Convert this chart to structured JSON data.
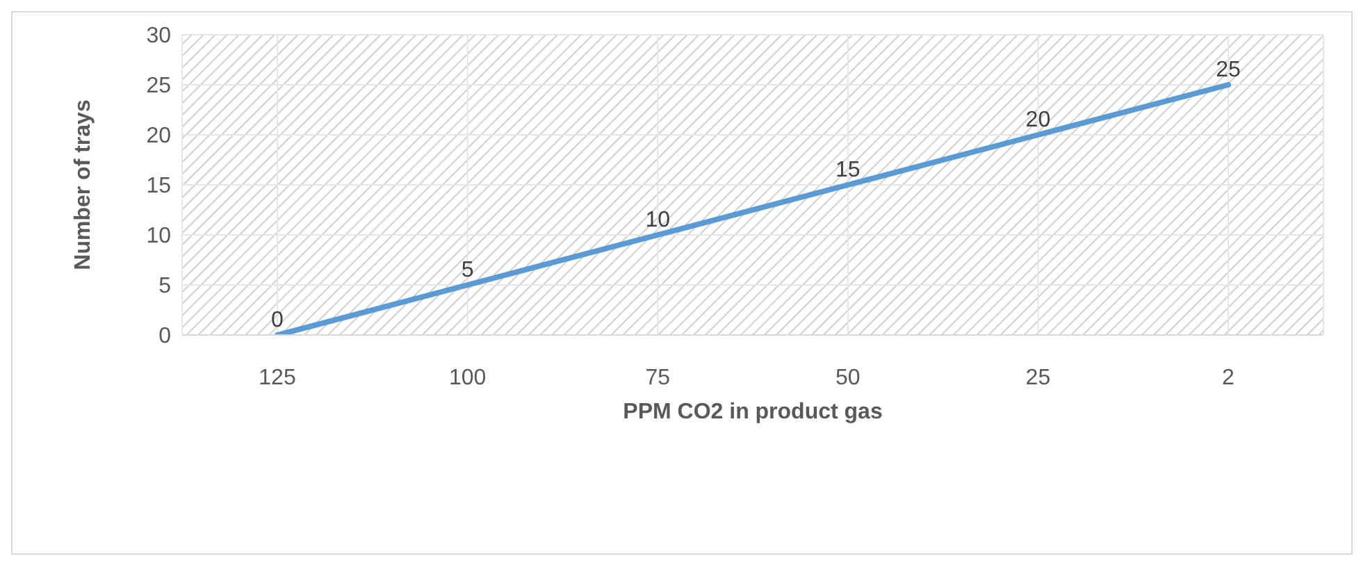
{
  "chart_data": {
    "type": "line",
    "xlabel": "PPM CO2 in product gas",
    "ylabel": "Number of trays",
    "categories": [
      "125",
      "100",
      "75",
      "50",
      "25",
      "2"
    ],
    "series": [
      {
        "color": "#5b9bd5",
        "values": [
          0,
          5,
          10,
          15,
          20,
          25
        ]
      }
    ],
    "ylim": [
      0,
      30
    ],
    "yticks": [
      0,
      5,
      10,
      15,
      20,
      25,
      30
    ],
    "grid": true,
    "legend": false,
    "marker": "none",
    "line_style": "solid",
    "data_labels": true
  }
}
